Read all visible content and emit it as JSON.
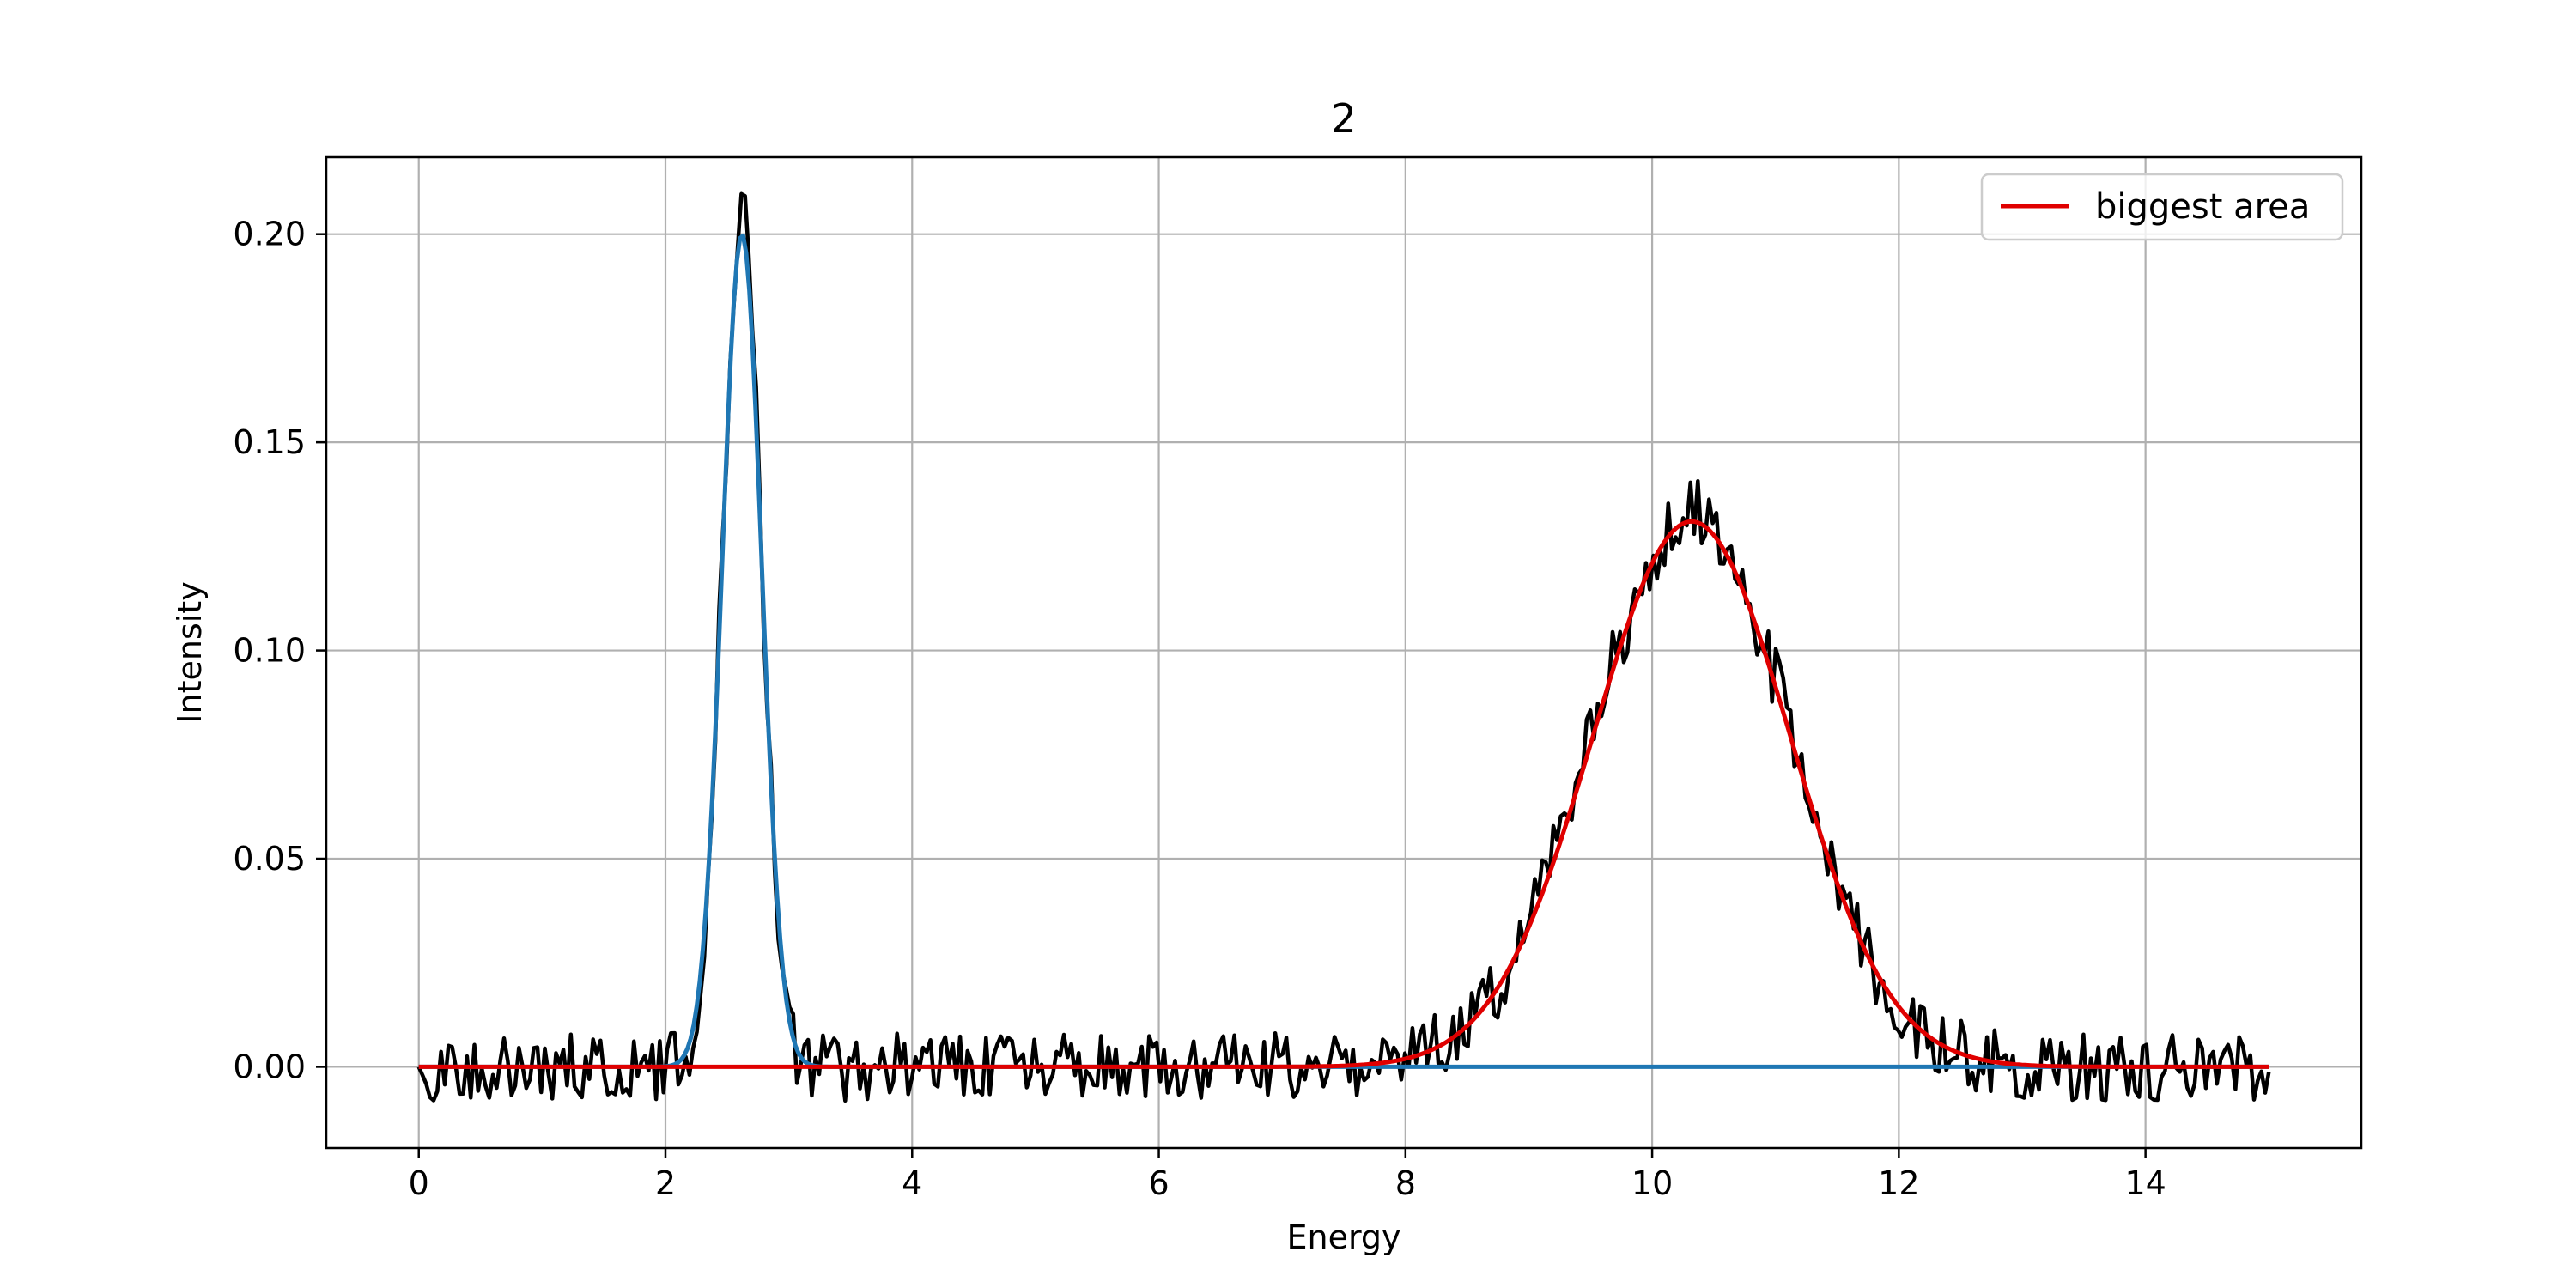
{
  "chart_data": {
    "type": "line",
    "title": "2",
    "xlabel": "Energy",
    "ylabel": "Intensity",
    "xlim": [
      -0.75,
      15.75
    ],
    "ylim": [
      -0.0195,
      0.2185
    ],
    "xticks": [
      0,
      2,
      4,
      6,
      8,
      10,
      12,
      14
    ],
    "xtick_labels": [
      "0",
      "2",
      "4",
      "6",
      "8",
      "10",
      "12",
      "14"
    ],
    "yticks": [
      0.0,
      0.05,
      0.1,
      0.15,
      0.2
    ],
    "ytick_labels": [
      "0.00",
      "0.05",
      "0.10",
      "0.15",
      "0.20"
    ],
    "grid": true,
    "legend": {
      "position": "top-right",
      "entries": [
        {
          "label": "biggest area",
          "color": "#e00000"
        }
      ]
    },
    "series": [
      {
        "role": "data",
        "color": "#000000",
        "x_range": [
          0,
          15
        ],
        "n_points": 500,
        "noise_amplitude": 0.0065,
        "peaks": [
          {
            "center": 2.62,
            "amplitude": 0.205,
            "sigma": 0.16
          },
          {
            "center": 10.32,
            "amplitude": 0.133,
            "sigma": 0.8
          }
        ]
      },
      {
        "role": "fit",
        "color": "#1f77b4",
        "x_range": [
          0,
          15
        ],
        "peak": {
          "center": 2.62,
          "amplitude": 0.2,
          "sigma": 0.16
        }
      },
      {
        "name": "biggest area",
        "role": "fit",
        "color": "#e00000",
        "x_range": [
          0,
          15
        ],
        "peak": {
          "center": 10.32,
          "amplitude": 0.131,
          "sigma": 0.8
        }
      }
    ]
  }
}
